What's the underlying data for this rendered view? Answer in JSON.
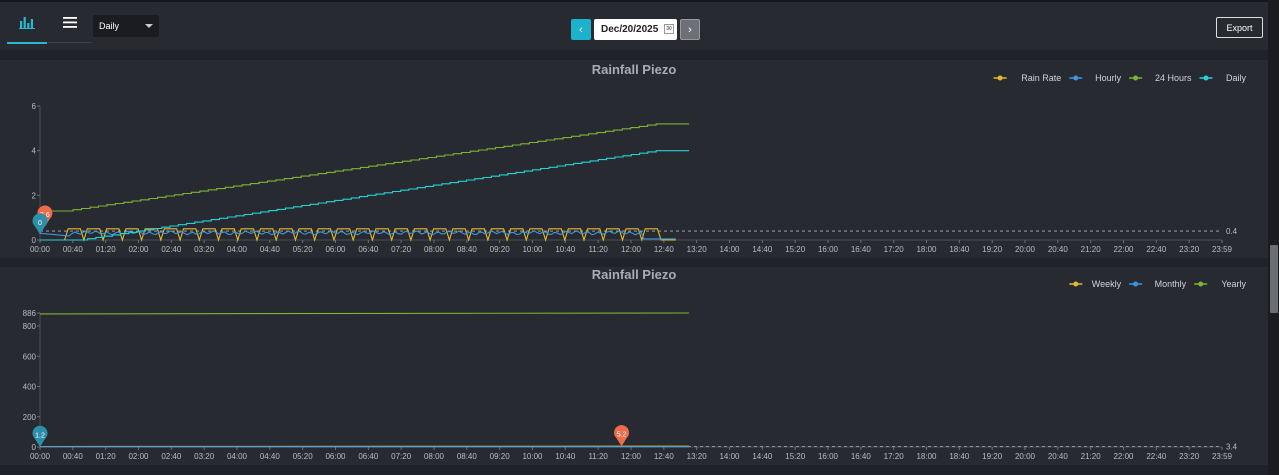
{
  "toolbar": {
    "period_select": "Daily",
    "prev_label": "‹",
    "date_value": "Dec/20/2025",
    "calendar_label": "30",
    "next_label": "›",
    "export_label": "Export"
  },
  "colors": {
    "accent": "#1cb2cd",
    "panel": "#272a31",
    "gold": "#e4b92c",
    "blue": "#3f94de",
    "green": "#7fb333",
    "cyan": "#22d3d8",
    "marker_red": "#ef6c4b",
    "marker_teal": "#2d8fa8"
  },
  "chart_data": [
    {
      "type": "line",
      "title": "Rainfall Piezo",
      "legend_position": "top-right",
      "ylim": [
        0,
        6
      ],
      "yticks": [
        "0",
        "2",
        "4",
        "6"
      ],
      "xticks": [
        "00:00",
        "00:40",
        "01:20",
        "02:00",
        "02:40",
        "03:20",
        "04:00",
        "04:40",
        "05:20",
        "06:00",
        "06:40",
        "07:20",
        "08:00",
        "08:40",
        "09:20",
        "10:00",
        "10:40",
        "11:20",
        "12:00",
        "12:40",
        "13:20",
        "14:00",
        "14:40",
        "15:20",
        "16:00",
        "16:40",
        "17:20",
        "18:00",
        "18:40",
        "19:20",
        "20:00",
        "20:40",
        "21:20",
        "22:00",
        "22:40",
        "23:20",
        "23:59"
      ],
      "series": [
        {
          "name": "Rain Rate",
          "color": "#e4b92c",
          "pattern": "pulse",
          "low": 0.0,
          "high": 0.5,
          "x_start_hours": 0.5,
          "x_end_hours": 12.6,
          "pulse_count": 31
        },
        {
          "name": "Hourly",
          "color": "#3f94de",
          "pattern": "ripple",
          "x_start_hours": 0.0,
          "x_end_hours": 12.9,
          "values_hint": [
            0.3,
            0.2,
            0.35,
            0.4,
            0.35,
            0.4,
            0.1,
            0.0
          ]
        },
        {
          "name": "24 Hours",
          "color": "#7fb333",
          "pattern": "steps",
          "x": [
            0,
            0.5,
            12.5,
            13.17
          ],
          "y": [
            1.3,
            1.3,
            5.2,
            5.2
          ]
        },
        {
          "name": "Daily",
          "color": "#22d3d8",
          "pattern": "steps",
          "x": [
            0,
            0.8,
            12.5,
            13.17
          ],
          "y": [
            0.0,
            0.0,
            4.0,
            4.0
          ]
        }
      ],
      "reference_line": {
        "value": 0.4,
        "label": "0.4"
      },
      "markers": [
        {
          "label": "2.6",
          "x_hours": 0.1,
          "y": 0.6,
          "color": "#ef6c4b"
        },
        {
          "label": "0",
          "x_hours": 0.0,
          "y": 0.25,
          "color": "#2d8fa8"
        }
      ]
    },
    {
      "type": "line",
      "title": "Rainfall Piezo",
      "legend_position": "top-right",
      "ylim": [
        0,
        886
      ],
      "yticks": [
        "0",
        "200",
        "400",
        "600",
        "800",
        "886"
      ],
      "xticks": [
        "00:00",
        "00:40",
        "01:20",
        "02:00",
        "02:40",
        "03:20",
        "04:00",
        "04:40",
        "05:20",
        "06:00",
        "06:40",
        "07:20",
        "08:00",
        "08:40",
        "09:20",
        "10:00",
        "10:40",
        "11:20",
        "12:00",
        "12:40",
        "13:20",
        "14:00",
        "14:40",
        "15:20",
        "16:00",
        "16:40",
        "17:20",
        "18:00",
        "18:40",
        "19:20",
        "20:00",
        "20:40",
        "21:20",
        "22:00",
        "22:40",
        "23:20",
        "23:59"
      ],
      "series": [
        {
          "name": "Weekly",
          "color": "#e4b92c",
          "x": [
            0,
            13.17
          ],
          "y": [
            3.4,
            5.2
          ]
        },
        {
          "name": "Monthly",
          "color": "#3f94de",
          "x": [
            0,
            13.17
          ],
          "y": [
            1.2,
            1.5
          ]
        },
        {
          "name": "Yearly",
          "color": "#7fb333",
          "x": [
            0,
            13.17
          ],
          "y": [
            880,
            886
          ]
        }
      ],
      "reference_line": {
        "value": 3.4,
        "label": "3.4"
      },
      "markers": [
        {
          "label": "5.2",
          "x_hours": 11.8,
          "y": 5.2,
          "color": "#ef6c4b"
        },
        {
          "label": "1.2",
          "x_hours": 0.0,
          "y": 1.2,
          "color": "#2d8fa8"
        }
      ]
    }
  ]
}
